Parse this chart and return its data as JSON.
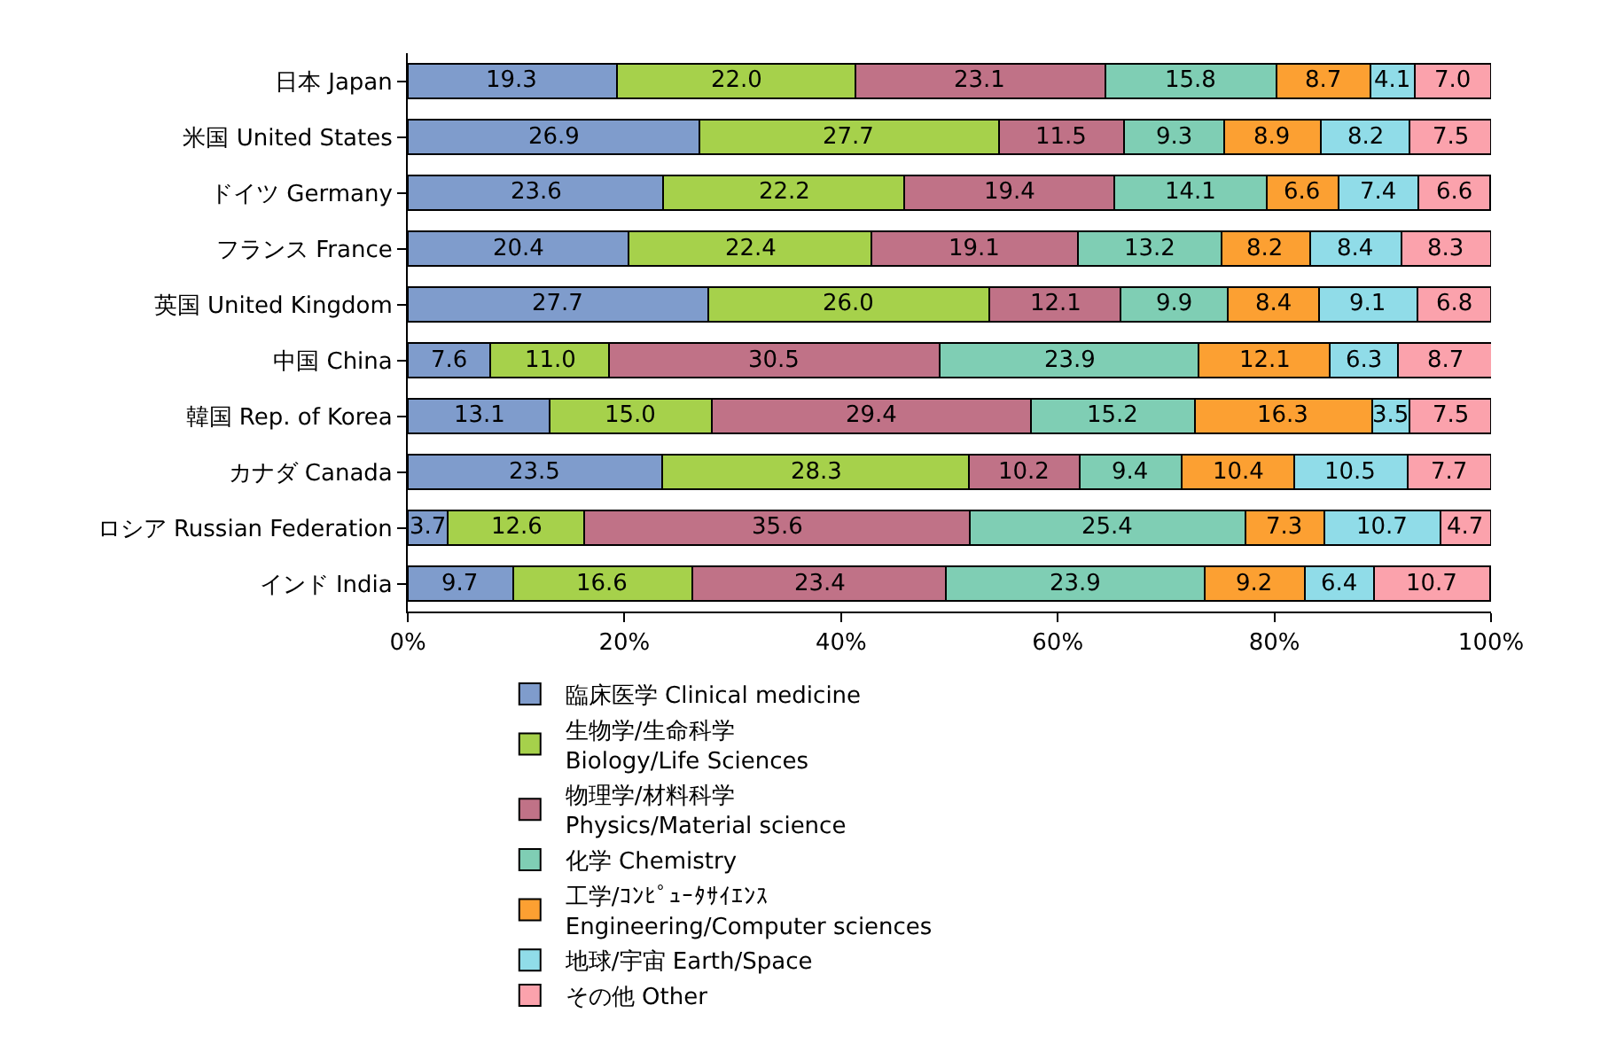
{
  "chart_data": {
    "type": "bar",
    "orientation": "horizontal",
    "stacked": true,
    "legend": "bottom",
    "categories": [
      "日本 Japan",
      "米国 United States",
      "ドイツ Germany",
      "フランス France",
      "英国 United Kingdom",
      "中国 China",
      "韓国 Rep. of Korea",
      "カナダ Canada",
      "ロシア Russian Federation",
      "インド India"
    ],
    "xlim": [
      0,
      100
    ],
    "xticks": [
      {
        "value": 0,
        "label": "0%"
      },
      {
        "value": 20,
        "label": "20%"
      },
      {
        "value": 40,
        "label": "40%"
      },
      {
        "value": 60,
        "label": "60%"
      },
      {
        "value": 80,
        "label": "80%"
      },
      {
        "value": 100,
        "label": "100%"
      }
    ],
    "series": [
      {
        "name": "臨床医学 Clinical medicine",
        "color": "#7f9ccc",
        "values": [
          19.3,
          26.9,
          23.6,
          20.4,
          27.7,
          7.6,
          13.1,
          23.5,
          3.7,
          9.7
        ],
        "value_labels": [
          "19.3",
          "26.9",
          "23.6",
          "20.4",
          "27.7",
          "7.6",
          "13.1",
          "23.5",
          "3.7",
          "9.7"
        ]
      },
      {
        "name": "生物学/生命科学\nBiology/Life Sciences",
        "color": "#a6d14b",
        "values": [
          22.0,
          27.7,
          22.2,
          22.4,
          26.0,
          11.0,
          15.0,
          28.3,
          12.6,
          16.6
        ],
        "value_labels": [
          "22.0",
          "27.7",
          "22.2",
          "22.4",
          "26.0",
          "11.0",
          "15.0",
          "28.3",
          "12.6",
          "16.6"
        ]
      },
      {
        "name": "物理学/材料科学\nPhysics/Material science",
        "color": "#c07287",
        "values": [
          23.1,
          11.5,
          19.4,
          19.1,
          12.1,
          30.5,
          29.4,
          10.2,
          35.6,
          23.4
        ],
        "value_labels": [
          "23.1",
          "11.5",
          "19.4",
          "19.1",
          "12.1",
          "30.5",
          "29.4",
          "10.2",
          "35.6",
          "23.4"
        ]
      },
      {
        "name": "化学 Chemistry",
        "color": "#7fceb4",
        "values": [
          15.8,
          9.3,
          14.1,
          13.2,
          9.9,
          23.9,
          15.2,
          9.4,
          25.4,
          23.9
        ],
        "value_labels": [
          "15.8",
          "9.3",
          "14.1",
          "13.2",
          "9.9",
          "23.9",
          "15.2",
          "9.4",
          "25.4",
          "23.9"
        ]
      },
      {
        "name": "工学/ｺﾝﾋﾟｭｰﾀｻｲｴﾝｽ\nEngineering/Computer sciences",
        "color": "#fca032",
        "values": [
          8.7,
          8.9,
          6.6,
          8.2,
          8.4,
          12.1,
          16.3,
          10.4,
          7.3,
          9.2
        ],
        "value_labels": [
          "8.7",
          "8.9",
          "6.6",
          "8.2",
          "8.4",
          "12.1",
          "16.3",
          "10.4",
          "7.3",
          "9.2"
        ]
      },
      {
        "name": "地球/宇宙 Earth/Space",
        "color": "#90dce8",
        "values": [
          4.1,
          8.2,
          7.4,
          8.4,
          9.1,
          6.3,
          3.5,
          10.5,
          10.7,
          6.4
        ],
        "value_labels": [
          "4.1",
          "8.2",
          "7.4",
          "8.4",
          "9.1",
          "6.3",
          "3.5",
          "10.5",
          "10.7",
          "6.4"
        ]
      },
      {
        "name": "その他 Other",
        "color": "#fba2ac",
        "values": [
          7.0,
          7.5,
          6.6,
          8.3,
          6.8,
          8.7,
          7.5,
          7.7,
          4.7,
          10.7
        ],
        "value_labels": [
          "7.0",
          "7.5",
          "6.6",
          "8.3",
          "6.8",
          "8.7",
          "7.5",
          "7.7",
          "4.7",
          "10.7"
        ]
      }
    ]
  }
}
